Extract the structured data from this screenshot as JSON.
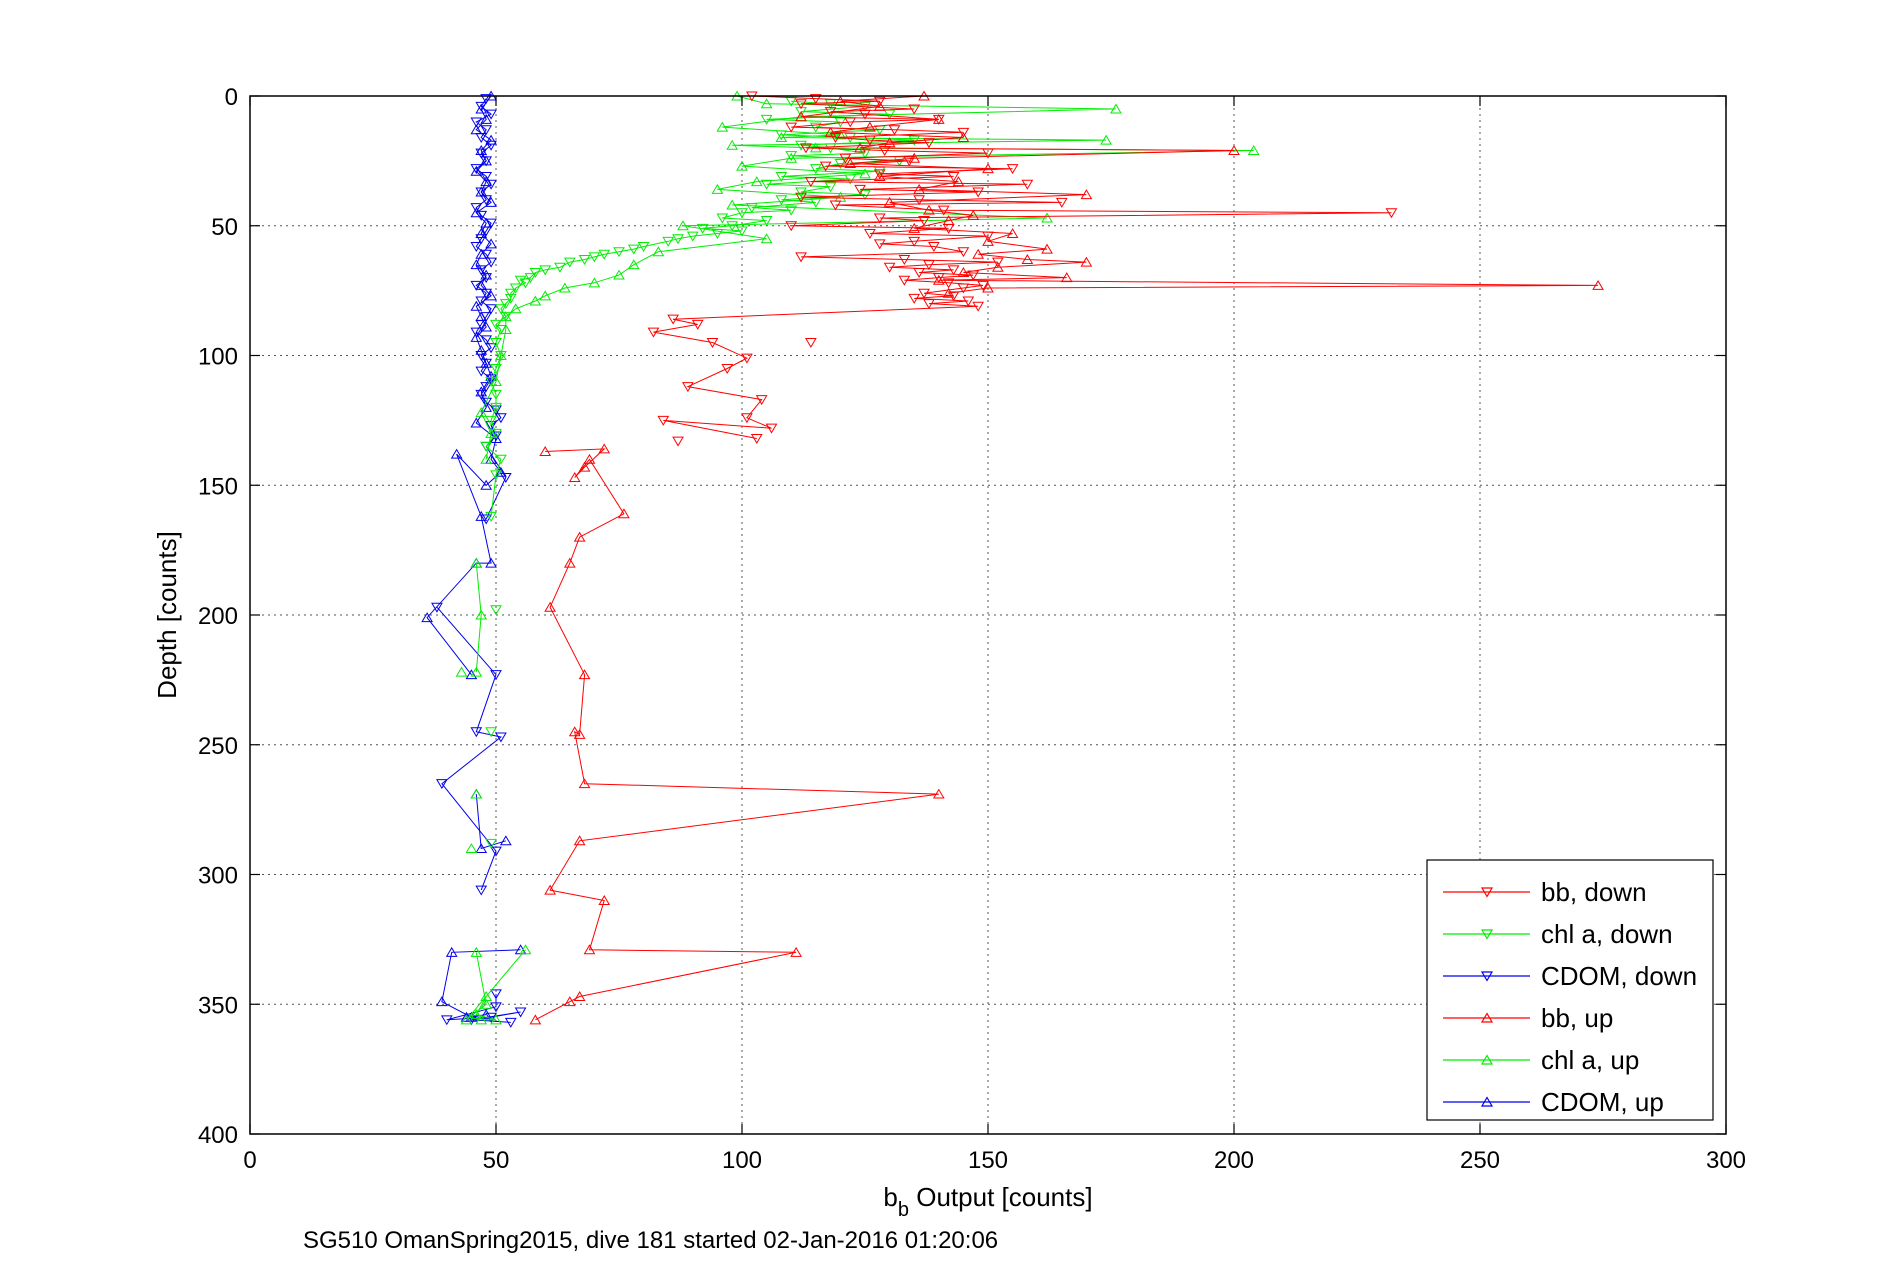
{
  "chart_data": {
    "type": "scatter",
    "xlabel_main": "b",
    "xlabel_sub": "b",
    "xlabel_rest": " Output [counts]",
    "ylabel": "Depth [counts]",
    "caption": "SG510 OmanSpring2015, dive 181 started 02-Jan-2016 01:20:06",
    "xlim": [
      0,
      300
    ],
    "ylim": [
      0,
      400
    ],
    "y_reversed": true,
    "grid": true,
    "legend_position": "bottom-right",
    "x_ticks": [
      0,
      50,
      100,
      150,
      200,
      250,
      300
    ],
    "y_ticks": [
      0,
      50,
      100,
      150,
      200,
      250,
      300,
      350,
      400
    ],
    "x_tick_labels": [
      "0",
      "50",
      "100",
      "150",
      "200",
      "250",
      "300"
    ],
    "y_tick_labels": [
      "0",
      "50",
      "100",
      "150",
      "200",
      "250",
      "300",
      "350",
      "400"
    ],
    "series": [
      {
        "name": "bb, down",
        "color": "#ff0000",
        "marker": "triangle-down",
        "x": [
          102,
          115,
          128,
          112,
          135,
          118,
          125,
          140,
          122,
          110,
          131,
          145,
          119,
          126,
          138,
          113,
          129,
          150,
          121,
          134,
          117,
          155,
          128,
          143,
          114,
          158,
          124,
          148,
          112,
          136,
          165,
          119,
          141,
          232,
          128,
          137,
          110,
          142,
          126,
          150,
          135,
          128,
          139,
          145,
          112,
          133,
          152,
          138,
          130,
          143,
          136,
          147,
          140,
          133,
          142,
          149,
          145,
          137,
          143,
          135,
          146,
          138,
          148,
          86,
          91,
          82,
          94,
          101,
          97,
          89,
          104,
          101,
          106,
          84,
          103,
          114,
          87
        ],
        "y": [
          0,
          1,
          2,
          3,
          5,
          6,
          7,
          9,
          10,
          12,
          13,
          14,
          16,
          17,
          18,
          20,
          21,
          22,
          24,
          25,
          27,
          28,
          30,
          31,
          33,
          34,
          36,
          37,
          39,
          40,
          41,
          42,
          44,
          45,
          47,
          48,
          50,
          51,
          53,
          54,
          56,
          57,
          58,
          60,
          62,
          63,
          64,
          65,
          66,
          67,
          68,
          69,
          70,
          71,
          72,
          73,
          74,
          76,
          77,
          78,
          79,
          80,
          81,
          86,
          88,
          91,
          95,
          101,
          105,
          112,
          117,
          124,
          128,
          125,
          132,
          95,
          133
        ]
      },
      {
        "name": "chl a, down",
        "color": "#00ee00",
        "marker": "triangle-down",
        "x": [
          110,
          118,
          125,
          112,
          130,
          105,
          120,
          115,
          128,
          108,
          122,
          135,
          112,
          118,
          125,
          110,
          132,
          120,
          115,
          128,
          108,
          122,
          105,
          118,
          112,
          125,
          108,
          115,
          102,
          110,
          100,
          96,
          105,
          98,
          92,
          100,
          95,
          90,
          87,
          85,
          80,
          78,
          75,
          72,
          70,
          68,
          65,
          63,
          60,
          58,
          57,
          55,
          56,
          54,
          53,
          53,
          52,
          51,
          52,
          50,
          51,
          50,
          51,
          50,
          49,
          50,
          50,
          49,
          50,
          48,
          51,
          50,
          49,
          50,
          49,
          49
        ],
        "y": [
          2,
          3,
          4,
          6,
          7,
          9,
          10,
          12,
          13,
          15,
          16,
          17,
          19,
          20,
          22,
          23,
          25,
          26,
          28,
          29,
          31,
          32,
          34,
          35,
          37,
          38,
          40,
          41,
          43,
          44,
          45,
          47,
          48,
          50,
          51,
          52,
          53,
          54,
          55,
          56,
          58,
          59,
          60,
          61,
          62,
          63,
          64,
          66,
          67,
          68,
          70,
          71,
          72,
          74,
          76,
          78,
          80,
          82,
          85,
          88,
          90,
          95,
          100,
          105,
          110,
          115,
          120,
          125,
          130,
          135,
          140,
          146,
          162,
          198,
          245,
          288
        ]
      },
      {
        "name": "CDOM, down",
        "color": "#0000ee",
        "marker": "triangle-down",
        "x": [
          48,
          47,
          49,
          46,
          48,
          47,
          49,
          47,
          48,
          46,
          48,
          49,
          47,
          48,
          46,
          47,
          49,
          48,
          47,
          46,
          48,
          49,
          47,
          48,
          46,
          48,
          47,
          49,
          48,
          47,
          46,
          48,
          49,
          47,
          48,
          47,
          49,
          48,
          47,
          48,
          50,
          51,
          49,
          50,
          48,
          52,
          48,
          38,
          50,
          46,
          51,
          39,
          50,
          47,
          50,
          50,
          40,
          49,
          55,
          45,
          53
        ],
        "y": [
          1,
          4,
          7,
          10,
          13,
          16,
          19,
          22,
          25,
          28,
          31,
          34,
          37,
          40,
          43,
          46,
          49,
          52,
          55,
          58,
          61,
          64,
          67,
          70,
          73,
          76,
          79,
          82,
          85,
          88,
          91,
          94,
          97,
          100,
          103,
          106,
          109,
          112,
          115,
          118,
          121,
          124,
          127,
          131,
          135,
          147,
          163,
          197,
          223,
          245,
          247,
          265,
          291,
          306,
          346,
          351,
          356,
          355,
          353,
          356,
          357
        ]
      },
      {
        "name": "bb, up",
        "color": "#ff0000",
        "marker": "triangle-up",
        "x": [
          137,
          120,
          128,
          112,
          140,
          126,
          118,
          145,
          130,
          124,
          200,
          135,
          122,
          150,
          128,
          144,
          136,
          170,
          130,
          138,
          147,
          142,
          135,
          155,
          150,
          162,
          148,
          158,
          170,
          152,
          145,
          166,
          140,
          274,
          150,
          142,
          60,
          72,
          68,
          66,
          69,
          76,
          67,
          65,
          61,
          68,
          67,
          66,
          68,
          140,
          67,
          61,
          72,
          69,
          111,
          67,
          65,
          58
        ],
        "y": [
          0,
          2,
          4,
          8,
          9,
          12,
          14,
          16,
          18,
          20,
          21,
          24,
          26,
          28,
          31,
          33,
          36,
          38,
          41,
          44,
          46,
          48,
          51,
          53,
          56,
          59,
          61,
          63,
          64,
          66,
          68,
          70,
          71,
          73,
          74,
          76,
          137,
          136,
          143,
          147,
          140,
          161,
          170,
          180,
          197,
          223,
          246,
          245,
          265,
          269,
          287,
          306,
          310,
          329,
          330,
          347,
          349,
          356
        ]
      },
      {
        "name": "chl a, up",
        "color": "#00ee00",
        "marker": "triangle-up",
        "x": [
          99,
          105,
          176,
          112,
          96,
          120,
          108,
          174,
          98,
          115,
          204,
          110,
          100,
          125,
          103,
          95,
          120,
          98,
          162,
          88,
          105,
          83,
          78,
          75,
          70,
          64,
          60,
          58,
          54,
          52,
          52,
          51,
          50,
          47,
          49,
          48,
          46,
          47,
          46,
          46,
          43,
          45,
          46,
          48,
          44,
          56,
          48,
          46,
          50,
          47
        ],
        "y": [
          0,
          3,
          5,
          8,
          12,
          15,
          16,
          17,
          19,
          20,
          21,
          24,
          27,
          30,
          33,
          36,
          39,
          42,
          47,
          50,
          55,
          60,
          65,
          69,
          72,
          74,
          77,
          79,
          82,
          85,
          90,
          100,
          110,
          122,
          130,
          140,
          180,
          200,
          222,
          269,
          222,
          290,
          330,
          350,
          356,
          329,
          347,
          354,
          356,
          356
        ]
      },
      {
        "name": "CDOM, up",
        "color": "#0000ee",
        "marker": "triangle-up",
        "x": [
          49,
          47,
          48,
          46,
          49,
          47,
          48,
          46,
          48,
          47,
          49,
          46,
          48,
          47,
          49,
          47,
          46,
          48,
          47,
          49,
          46,
          47,
          48,
          46,
          47,
          48,
          49,
          47,
          48,
          46,
          50,
          49,
          51,
          48,
          42,
          47,
          49,
          46,
          36,
          45,
          46,
          47,
          52,
          55,
          41,
          39,
          45,
          48,
          44
        ],
        "y": [
          0,
          5,
          9,
          13,
          17,
          21,
          25,
          29,
          33,
          37,
          41,
          45,
          49,
          53,
          57,
          61,
          65,
          69,
          73,
          77,
          81,
          85,
          89,
          93,
          98,
          103,
          108,
          114,
          120,
          126,
          132,
          140,
          145,
          150,
          138,
          162,
          180,
          180,
          201,
          223,
          269,
          290,
          287,
          329,
          330,
          349,
          355,
          354,
          355
        ]
      }
    ]
  }
}
